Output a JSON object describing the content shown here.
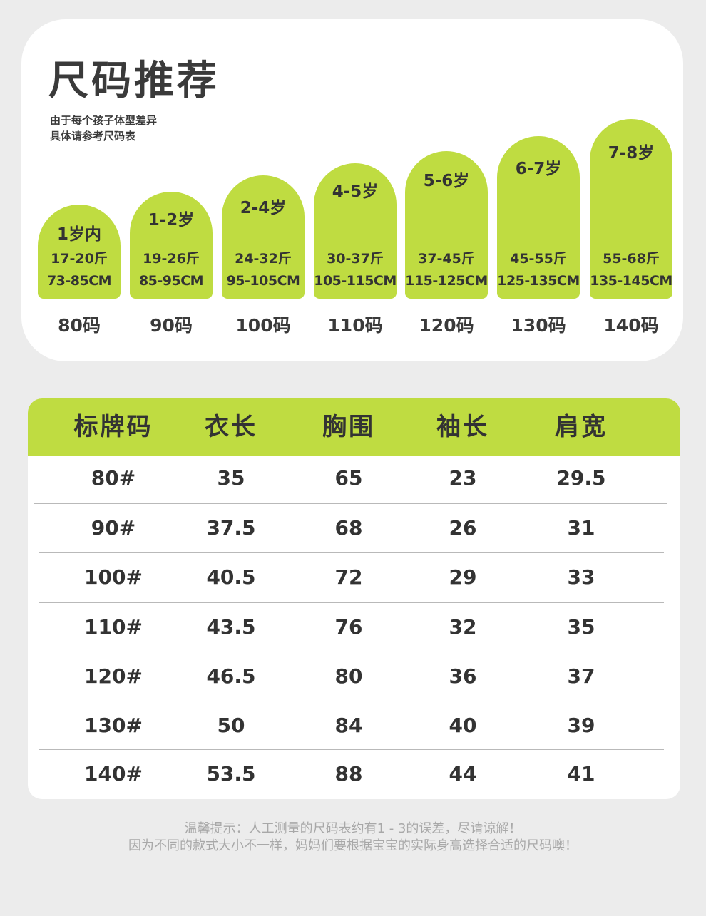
{
  "recommendation": {
    "title": "尺码推荐",
    "subtitle_line1": "由于每个孩子体型差异",
    "subtitle_line2": "具体请参考尺码表",
    "accent_color": "#bfdc41",
    "sizes": [
      {
        "age": "1岁内",
        "weight": "17-20斤",
        "height": "73-85CM",
        "size": "80码"
      },
      {
        "age": "1-2岁",
        "weight": "19-26斤",
        "height": "85-95CM",
        "size": "90码"
      },
      {
        "age": "2-4岁",
        "weight": "24-32斤",
        "height": "95-105CM",
        "size": "100码"
      },
      {
        "age": "4-5岁",
        "weight": "30-37斤",
        "height": "105-115CM",
        "size": "110码"
      },
      {
        "age": "5-6岁",
        "weight": "37-45斤",
        "height": "115-125CM",
        "size": "120码"
      },
      {
        "age": "6-7岁",
        "weight": "45-55斤",
        "height": "125-135CM",
        "size": "130码"
      },
      {
        "age": "7-8岁",
        "weight": "55-68斤",
        "height": "135-145CM",
        "size": "140码"
      }
    ]
  },
  "size_table": {
    "headers": [
      "标牌码",
      "衣长",
      "胸围",
      "袖长",
      "肩宽"
    ],
    "rows": [
      [
        "80#",
        "35",
        "65",
        "23",
        "29.5"
      ],
      [
        "90#",
        "37.5",
        "68",
        "26",
        "31"
      ],
      [
        "100#",
        "40.5",
        "72",
        "29",
        "33"
      ],
      [
        "110#",
        "43.5",
        "76",
        "32",
        "35"
      ],
      [
        "120#",
        "46.5",
        "80",
        "36",
        "37"
      ],
      [
        "130#",
        "50",
        "84",
        "40",
        "39"
      ],
      [
        "140#",
        "53.5",
        "88",
        "44",
        "41"
      ]
    ]
  },
  "notes": {
    "line1": "温馨提示：人工测量的尺码表约有1 - 3的误差，尽请谅解！",
    "line2": "因为不同的款式大小不一样，妈妈们要根据宝宝的实际身高选择合适的尺码噢！"
  }
}
